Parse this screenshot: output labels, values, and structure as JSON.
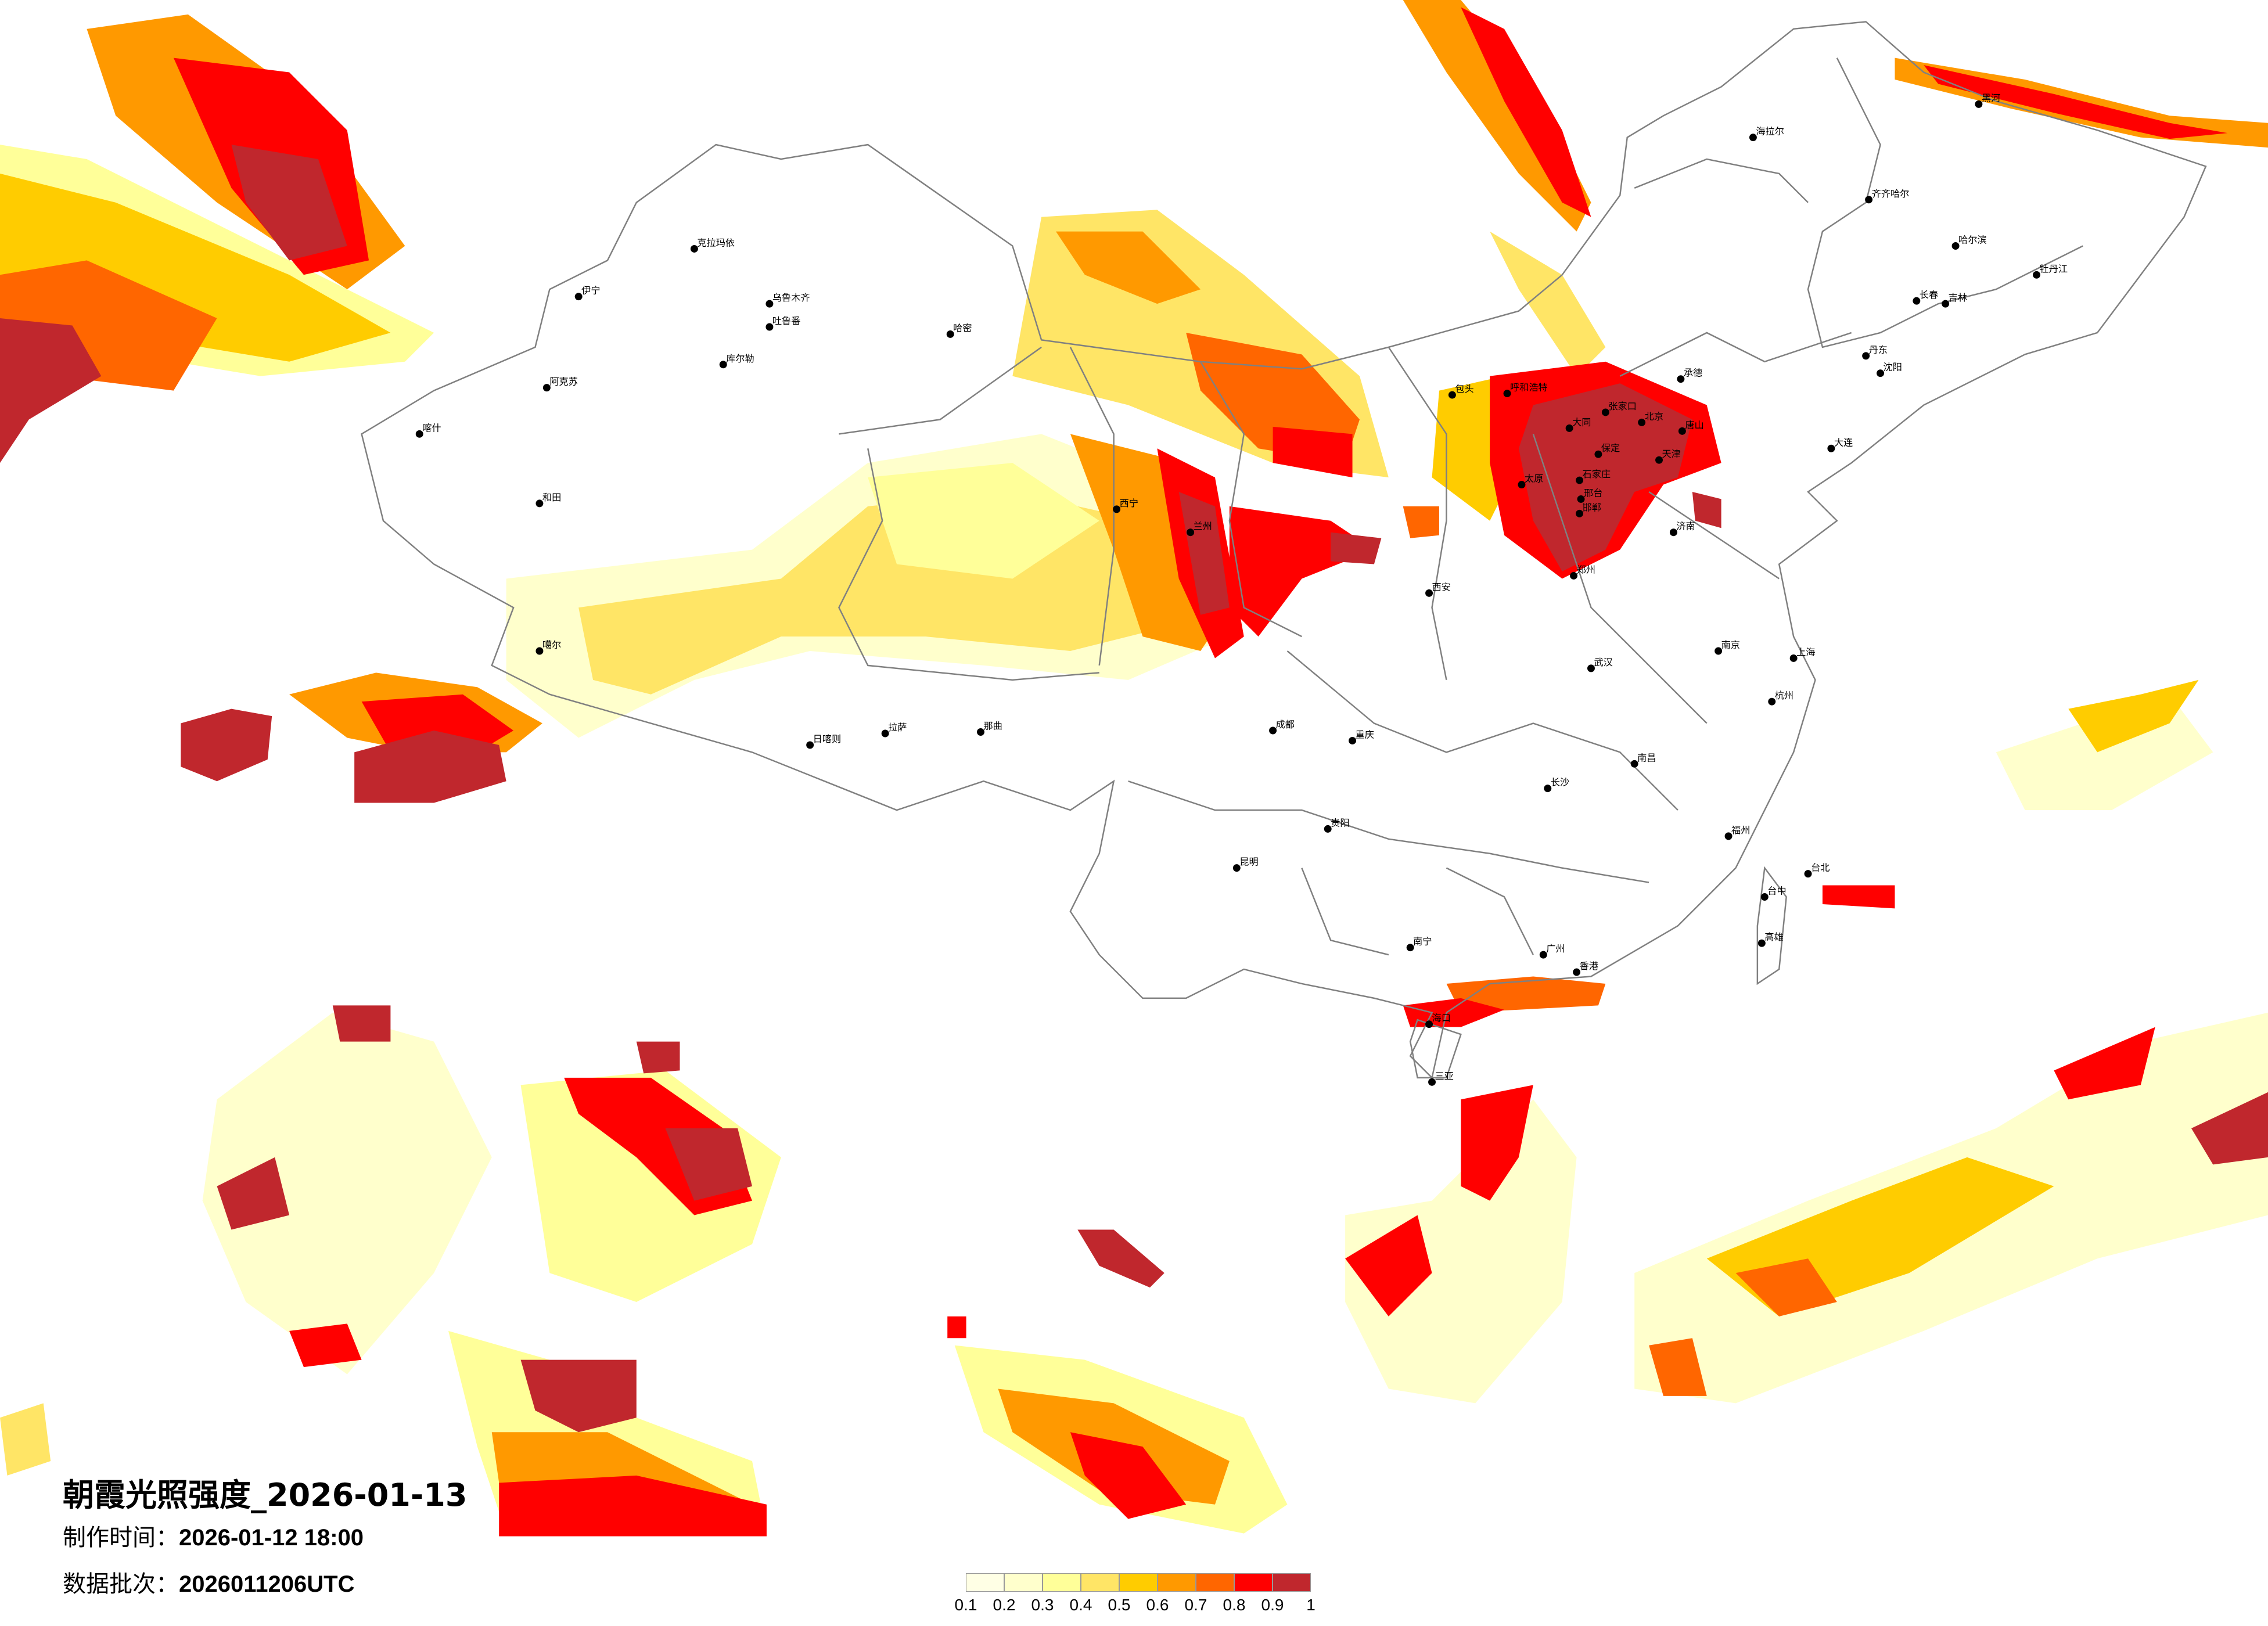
{
  "title": "朝霞光照强度_2026-01-13",
  "made_time": {
    "label": "制作时间：",
    "value": "2026-01-12 18:00"
  },
  "data_batch": {
    "label": "数据批次：",
    "value": "2026011206UTC"
  },
  "legend": {
    "colors": [
      "#FFFFE5",
      "#FFFFCC",
      "#FFFF99",
      "#FFE566",
      "#FFCC00",
      "#FF9900",
      "#FF6600",
      "#FF0000",
      "#C0272D"
    ],
    "ticks": [
      "0.1",
      "0.2",
      "0.3",
      "0.4",
      "0.5",
      "0.6",
      "0.7",
      "0.8",
      "0.9",
      "1"
    ]
  },
  "map": {
    "cities": [
      "北京",
      "天津",
      "石家庄",
      "保定",
      "张家口",
      "太原",
      "大同",
      "呼和浩特",
      "包头",
      "唐山",
      "承德",
      "济南",
      "郑州",
      "邯郸",
      "邢台",
      "西安",
      "兰州",
      "西宁",
      "成都",
      "重庆",
      "贵阳",
      "昆明",
      "南宁",
      "广州",
      "香港",
      "长沙",
      "南昌",
      "武汉",
      "南京",
      "上海",
      "杭州",
      "福州",
      "台北",
      "台中",
      "高雄",
      "海口",
      "三亚",
      "哈尔滨",
      "长春",
      "沈阳",
      "大连",
      "吉林",
      "齐齐哈尔",
      "黑河",
      "海拉尔",
      "牡丹江",
      "丹东",
      "乌鲁木齐",
      "克拉玛依",
      "伊宁",
      "喀什",
      "阿克苏",
      "和田",
      "库尔勒",
      "哈密",
      "吐鲁番",
      "噶尔",
      "拉萨",
      "那曲",
      "日喀则"
    ]
  }
}
